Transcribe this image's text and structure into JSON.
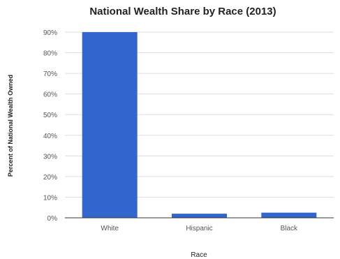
{
  "chart_data": {
    "type": "bar",
    "title": "National Wealth Share by Race (2013)",
    "xlabel": "Race",
    "ylabel": "Percent of National Wealth Owned",
    "categories": [
      "White",
      "Hispanic",
      "Black"
    ],
    "values": [
      90,
      2,
      2.5
    ],
    "ylim": [
      0,
      90
    ],
    "yticks": [
      "0%",
      "10%",
      "20%",
      "30%",
      "40%",
      "50%",
      "60%",
      "70%",
      "80%",
      "90%"
    ],
    "grid": true,
    "bar_color": "#3366cc"
  }
}
